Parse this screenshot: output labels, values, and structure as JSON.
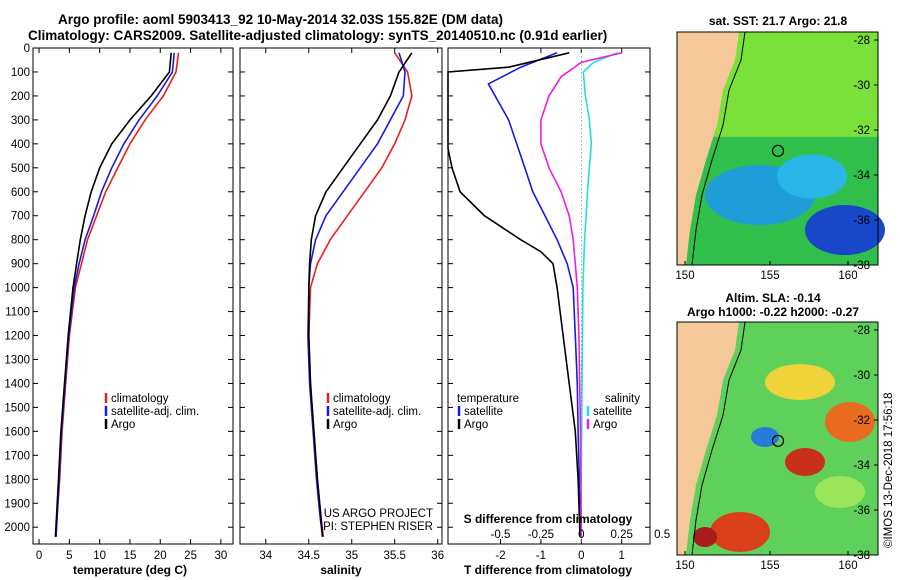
{
  "header": {
    "line1": "Argo profile: aoml 5903413_92 10-May-2014 32.03S 155.82E (DM data)",
    "line2": "Climatology: CARS2009. Satellite-adjusted climatology: synTS_20140510.nc (0.91d earlier)"
  },
  "colors": {
    "climatology": "#e8201c",
    "satellite": "#1a1adc",
    "argo": "#000000",
    "sal_satellite": "#22e0e0",
    "sal_argo": "#e81ee8",
    "land": "#f5c89a"
  },
  "chart_data": [
    {
      "type": "line",
      "panel": "temperature",
      "xlabel": "temperature (deg C)",
      "ylabel": "",
      "xlim": [
        -1,
        32
      ],
      "ylim": [
        2070,
        0
      ],
      "xticks": [
        0,
        5,
        10,
        15,
        20,
        25,
        30
      ],
      "yticks": [
        0,
        100,
        200,
        300,
        400,
        500,
        600,
        700,
        800,
        900,
        1000,
        1100,
        1200,
        1300,
        1400,
        1500,
        1600,
        1700,
        1800,
        1900,
        2000
      ],
      "legend": [
        "climatology",
        "satellite-adj. clim.",
        "Argo"
      ],
      "series": [
        {
          "name": "climatology",
          "color": "#e8201c",
          "x": [
            23.0,
            22.6,
            20.5,
            17.5,
            15.0,
            13.0,
            11.0,
            9.5,
            8.0,
            7.0,
            6.0,
            5.0,
            4.4,
            3.8,
            3.4,
            3.0,
            2.8
          ],
          "y": [
            20,
            100,
            200,
            300,
            400,
            500,
            600,
            700,
            800,
            900,
            1000,
            1200,
            1400,
            1600,
            1800,
            1950,
            2040
          ]
        },
        {
          "name": "satellite-adj. clim.",
          "color": "#1a1adc",
          "x": [
            22.3,
            22.0,
            19.5,
            16.5,
            14.0,
            12.0,
            10.3,
            9.0,
            7.6,
            6.6,
            5.8,
            4.9,
            4.3,
            3.7,
            3.3,
            3.0,
            2.8
          ],
          "y": [
            20,
            100,
            200,
            300,
            400,
            500,
            600,
            700,
            800,
            900,
            1000,
            1200,
            1400,
            1600,
            1800,
            1950,
            2040
          ]
        },
        {
          "name": "Argo",
          "color": "#000000",
          "x": [
            21.8,
            21.5,
            18.5,
            15.0,
            12.0,
            10.0,
            8.6,
            7.6,
            6.8,
            6.2,
            5.6,
            4.8,
            4.2,
            3.6,
            3.2,
            2.9,
            2.7
          ],
          "y": [
            20,
            100,
            200,
            300,
            400,
            500,
            600,
            700,
            800,
            900,
            1000,
            1200,
            1400,
            1600,
            1800,
            1950,
            2040
          ]
        }
      ]
    },
    {
      "type": "line",
      "panel": "salinity",
      "xlabel": "salinity",
      "xlim": [
        33.7,
        36.05
      ],
      "ylim": [
        2070,
        0
      ],
      "xticks": [
        34,
        34.5,
        35,
        35.5,
        36
      ],
      "legend": [
        "climatology",
        "satellite-adj. clim.",
        "Argo"
      ],
      "annotation": [
        "US ARGO PROJECT",
        "PI: STEPHEN RISER"
      ],
      "series": [
        {
          "name": "climatology",
          "color": "#e8201c",
          "x": [
            35.5,
            35.65,
            35.7,
            35.62,
            35.5,
            35.35,
            35.15,
            34.95,
            34.75,
            34.6,
            34.52,
            34.5,
            34.52,
            34.56,
            34.6,
            34.64,
            34.67
          ],
          "y": [
            20,
            100,
            200,
            300,
            400,
            500,
            600,
            700,
            800,
            900,
            1000,
            1200,
            1400,
            1600,
            1800,
            1950,
            2040
          ]
        },
        {
          "name": "satellite-adj. clim.",
          "color": "#1a1adc",
          "x": [
            35.55,
            35.62,
            35.6,
            35.45,
            35.3,
            35.1,
            34.9,
            34.7,
            34.58,
            34.52,
            34.5,
            34.49,
            34.51,
            34.55,
            34.59,
            34.63,
            34.66
          ],
          "y": [
            20,
            100,
            200,
            300,
            400,
            500,
            600,
            700,
            800,
            900,
            1000,
            1200,
            1400,
            1600,
            1800,
            1950,
            2040
          ]
        },
        {
          "name": "Argo",
          "color": "#000000",
          "x": [
            35.7,
            35.55,
            35.45,
            35.3,
            35.1,
            34.9,
            34.7,
            34.58,
            34.53,
            34.51,
            34.5,
            34.5,
            34.52,
            34.56,
            34.6,
            34.64,
            34.66
          ],
          "y": [
            20,
            100,
            200,
            300,
            400,
            500,
            600,
            700,
            800,
            900,
            1000,
            1200,
            1400,
            1600,
            1800,
            1950,
            2040
          ]
        }
      ]
    },
    {
      "type": "line",
      "panel": "difference",
      "xlabel": "T difference from climatology",
      "xlabel_top": "S difference from climatology",
      "xlim": [
        -3.3,
        1.7
      ],
      "ylim": [
        2070,
        0
      ],
      "xticks": [
        -2,
        -1,
        0,
        1
      ],
      "xticks_top": [
        "-0.5",
        "-0.25",
        "0",
        "0.25",
        "0.5"
      ],
      "xticks_top_values": [
        -2,
        -1,
        0,
        1,
        2
      ],
      "legend_temperature_title": "temperature",
      "legend_salinity_title": "salinity",
      "legend": [
        "satellite",
        "Argo",
        "satellite",
        "Argo"
      ],
      "series": [
        {
          "name": "satellite",
          "group": "temperature",
          "color": "#1a1adc",
          "x": [
            -0.6,
            -1.5,
            -2.3,
            -1.8,
            -1.6,
            -1.4,
            -1.2,
            -0.9,
            -0.6,
            -0.35,
            -0.2,
            -0.15,
            -0.1,
            -0.08,
            -0.05,
            -0.03,
            -0.02
          ],
          "y": [
            20,
            80,
            150,
            300,
            400,
            500,
            600,
            700,
            800,
            900,
            1000,
            1200,
            1400,
            1600,
            1800,
            1950,
            2040
          ]
        },
        {
          "name": "Argo",
          "group": "temperature",
          "color": "#000000",
          "x": [
            -0.3,
            -1.8,
            -3.3,
            -3.3,
            -3.2,
            -3.0,
            -2.4,
            -1.5,
            -1.0,
            -0.7,
            -0.6,
            -0.45,
            -0.3,
            -0.15,
            -0.08,
            -0.05,
            -0.03
          ],
          "y": [
            20,
            80,
            100,
            420,
            500,
            600,
            700,
            800,
            850,
            900,
            1000,
            1200,
            1400,
            1600,
            1800,
            1950,
            2040
          ]
        },
        {
          "name": "satellite",
          "group": "salinity",
          "color": "#22e0e0",
          "x": [
            0.9,
            0.3,
            0.05,
            0.1,
            0.2,
            0.25,
            0.2,
            0.15,
            0.12,
            0.08,
            0.06,
            0.04,
            0.03,
            0.02,
            0.01,
            0.0,
            0.0
          ],
          "y": [
            20,
            60,
            100,
            200,
            300,
            400,
            500,
            600,
            700,
            800,
            900,
            1000,
            1200,
            1400,
            1600,
            1800,
            2040
          ]
        },
        {
          "name": "Argo",
          "group": "salinity",
          "color": "#e81ee8",
          "x": [
            1.0,
            0.0,
            -0.5,
            -0.8,
            -1.0,
            -1.0,
            -0.8,
            -0.5,
            -0.3,
            -0.2,
            -0.15,
            -0.1,
            -0.06,
            -0.04,
            -0.02,
            -0.01,
            0.0
          ],
          "y": [
            20,
            60,
            120,
            200,
            300,
            400,
            500,
            600,
            700,
            800,
            900,
            1000,
            1200,
            1400,
            1600,
            1800,
            2040
          ]
        }
      ]
    },
    {
      "type": "heatmap",
      "panel": "sst-map",
      "title": "sat. SST: 21.7 Argo: 21.8",
      "xticks": [
        "150",
        "155",
        "160"
      ],
      "yticks": [
        "-28",
        "-30",
        "-32",
        "-34",
        "-36",
        "-38"
      ]
    },
    {
      "type": "heatmap",
      "panel": "sla-map",
      "title_line1": "Altim. SLA: -0.14",
      "title_line2": "Argo h1000: -0.22 h2000: -0.27",
      "xticks": [
        "150",
        "155",
        "160"
      ],
      "yticks": [
        "-28",
        "-30",
        "-32",
        "-34",
        "-36",
        "-38"
      ]
    }
  ],
  "footer": {
    "credit": "©IMOS 13-Dec-2018 17:56:18"
  }
}
